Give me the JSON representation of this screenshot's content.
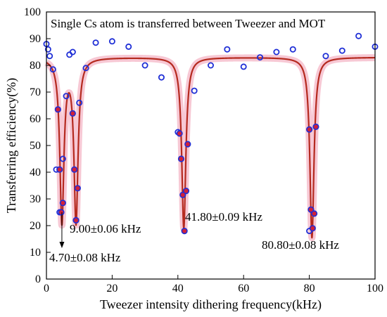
{
  "chart_data": {
    "type": "scatter",
    "title": "Single Cs atom is transferred between Tweezer and MOT",
    "xlabel": "Tweezer intensity dithering frequency(kHz)",
    "ylabel": "Transferring efficiency(%)",
    "xlim": [
      0,
      100
    ],
    "ylim": [
      0,
      100
    ],
    "xticks": [
      0,
      20,
      40,
      60,
      80,
      100
    ],
    "yticks": [
      0,
      10,
      20,
      30,
      40,
      50,
      60,
      70,
      80,
      90,
      100
    ],
    "grid": false,
    "colors": {
      "points_blue": "#1f2fd6",
      "points_red": "#d0203a",
      "fit_line": "#b52a1f",
      "fit_band": "#f4b6c6"
    },
    "series": [
      {
        "kind": "scatter-open-blue",
        "x": [
          0,
          0.5,
          1,
          2,
          3,
          4,
          5,
          6,
          7,
          8,
          9,
          10,
          12,
          15,
          20,
          25,
          30,
          35,
          40,
          45,
          50,
          55,
          60,
          65,
          70,
          75,
          80,
          85,
          90,
          95,
          100
        ],
        "y": [
          88,
          86,
          83.5,
          78.5,
          41,
          25,
          45,
          68.5,
          84,
          85,
          22,
          66,
          79,
          88.5,
          89,
          87,
          80,
          75.5,
          55,
          70.5,
          80,
          86,
          79.5,
          83,
          85,
          86,
          18,
          83.5,
          85.5,
          91,
          87
        ]
      },
      {
        "kind": "scatter-filled-dip",
        "x": [
          3.5,
          4,
          4.5,
          5,
          8,
          8.5,
          9,
          9.5,
          40.5,
          41,
          41.5,
          42,
          42.5,
          43,
          80,
          80.5,
          81,
          81.5,
          82
        ],
        "y": [
          63.5,
          41,
          25,
          28.5,
          62,
          41,
          22,
          34,
          54.5,
          45,
          31.5,
          18,
          33,
          50.5,
          56,
          26,
          19,
          24.5,
          57
        ]
      },
      {
        "kind": "lorentzian-fit",
        "baseline": 83,
        "dips": [
          {
            "center": 4.7,
            "min": 22
          },
          {
            "center": 9.0,
            "min": 22
          },
          {
            "center": 41.8,
            "min": 19
          },
          {
            "center": 80.8,
            "min": 15.5
          }
        ]
      }
    ],
    "annotations": [
      {
        "text": "9.00±0.06 kHz",
        "x": 9.0
      },
      {
        "text": "41.80±0.09 kHz",
        "x": 41.8
      },
      {
        "text": "80.80±0.08 kHz",
        "x": 80.8
      },
      {
        "text": "4.70±0.08 kHz",
        "x": 4.7
      }
    ]
  }
}
